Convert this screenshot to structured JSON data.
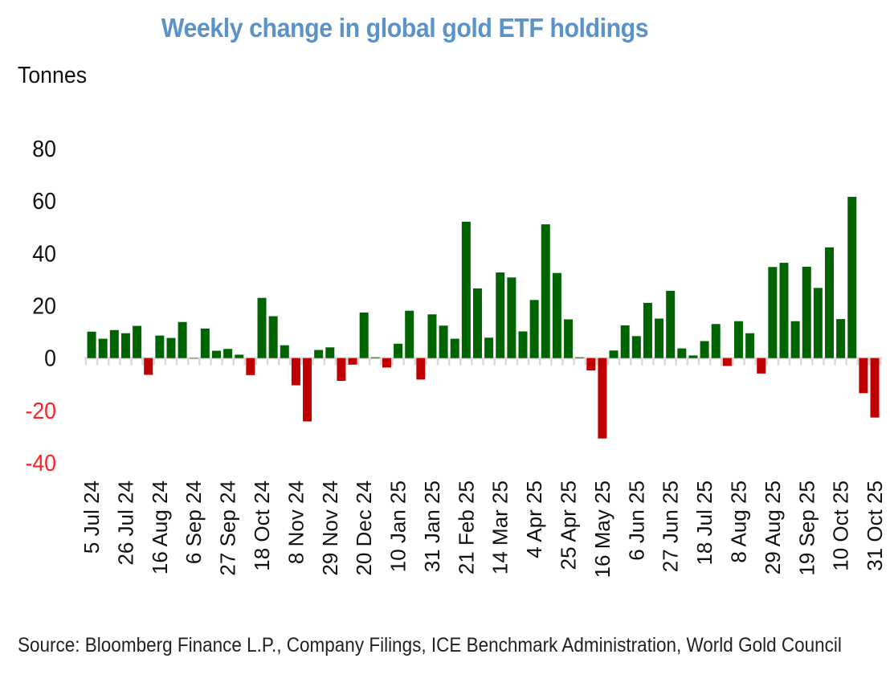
{
  "chart_data": {
    "type": "bar",
    "title": "Weekly change in global gold ETF holdings",
    "ylabel": "Tonnes",
    "xlabel": "",
    "ylim": [
      -40,
      80
    ],
    "yticks": [
      80,
      60,
      40,
      20,
      0,
      -20,
      -40
    ],
    "ytick_labels": [
      "80",
      "60",
      "40",
      "20",
      "0",
      "-20",
      "-40"
    ],
    "grid": false,
    "legend": "none",
    "colors": {
      "positive": "#006400",
      "negative": "#c00000",
      "positive_tick_text": "#111111",
      "negative_tick_text": "#ff2020",
      "title": "#5b92c8"
    },
    "x_label_every": 3,
    "x_tick_labels": [
      "5 Jul 24",
      "26 Jul 24",
      "16 Aug 24",
      "6 Sep 24",
      "27 Sep 24",
      "18 Oct 24",
      "8 Nov 24",
      "29 Nov 24",
      "20 Dec 24",
      "10 Jan 25",
      "31 Jan 25",
      "21 Feb 25",
      "14 Mar 25",
      "4 Apr 25",
      "25 Apr 25",
      "16 May 25",
      "6 Jun 25",
      "27 Jun 25",
      "18 Jul 25",
      "8 Aug 25",
      "29 Aug 25",
      "19 Sep 25",
      "10 Oct 25",
      "31 Oct 25"
    ],
    "values": [
      10.1,
      7.4,
      10.7,
      9.5,
      12.3,
      -6.4,
      8.6,
      7.7,
      13.8,
      0.0,
      11.3,
      2.8,
      3.5,
      1.3,
      -6.5,
      23.0,
      16.0,
      4.9,
      -10.4,
      -24.2,
      3.1,
      4.1,
      -8.7,
      -2.5,
      17.4,
      0.3,
      -3.6,
      5.5,
      18.1,
      -8.2,
      16.7,
      12.4,
      7.4,
      52.1,
      26.6,
      7.8,
      32.7,
      30.8,
      10.2,
      22.2,
      51.1,
      32.5,
      14.8,
      0.3,
      -4.7,
      -30.7,
      2.9,
      12.5,
      8.4,
      21.1,
      15.1,
      25.7,
      3.7,
      1.0,
      6.5,
      13.0,
      -3.0,
      14.1,
      9.5,
      -5.9,
      34.8,
      36.4,
      14.1,
      34.9,
      26.8,
      42.3,
      14.9,
      61.6,
      -13.4,
      -22.7
    ]
  },
  "source": "Source: Bloomberg Finance L.P., Company Filings, ICE Benchmark Administration, World Gold Council"
}
